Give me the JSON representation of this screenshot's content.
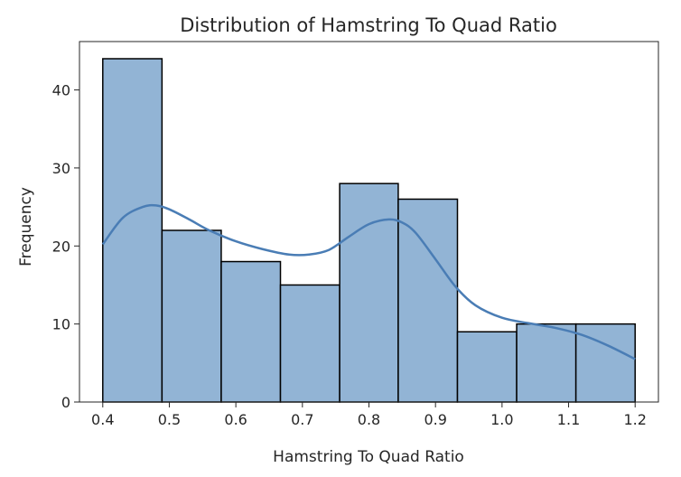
{
  "chart_data": {
    "type": "bar",
    "subtype": "histogram",
    "title": "Distribution of Hamstring To Quad Ratio",
    "xlabel": "Hamstring To Quad Ratio",
    "ylabel": "Frequency",
    "bin_edges": [
      0.4,
      0.489,
      0.578,
      0.667,
      0.756,
      0.844,
      0.933,
      1.022,
      1.111,
      1.2
    ],
    "values": [
      44,
      22,
      18,
      15,
      28,
      26,
      9,
      10,
      10
    ],
    "xlim": [
      0.365,
      1.235
    ],
    "ylim": [
      0,
      46.2
    ],
    "xticks": [
      0.4,
      0.5,
      0.6,
      0.7,
      0.8,
      0.9,
      1.0,
      1.1,
      1.2
    ],
    "xtick_labels": [
      "0.4",
      "0.5",
      "0.6",
      "0.7",
      "0.8",
      "0.9",
      "1.0",
      "1.1",
      "1.2"
    ],
    "yticks": [
      0,
      10,
      20,
      30,
      40
    ],
    "ytick_labels": [
      "0",
      "10",
      "20",
      "30",
      "40"
    ],
    "kde": {
      "x": [
        0.4,
        0.43,
        0.46,
        0.48,
        0.5,
        0.53,
        0.56,
        0.6,
        0.64,
        0.68,
        0.71,
        0.74,
        0.77,
        0.8,
        0.83,
        0.85,
        0.87,
        0.9,
        0.93,
        0.96,
        1.0,
        1.04,
        1.08,
        1.12,
        1.16,
        1.2
      ],
      "y": [
        20.2,
        23.6,
        25.0,
        25.2,
        24.7,
        23.4,
        22.0,
        20.6,
        19.6,
        18.9,
        18.9,
        19.5,
        21.2,
        22.8,
        23.4,
        23.0,
        21.7,
        18.3,
        14.8,
        12.4,
        10.8,
        10.1,
        9.5,
        8.6,
        7.2,
        5.5
      ]
    },
    "grid": false,
    "legend": "none",
    "colors": {
      "bar_fill": "#92b4d5",
      "bar_edge": "#000000",
      "kde_line": "#4a7db5",
      "axis": "#262626"
    }
  }
}
